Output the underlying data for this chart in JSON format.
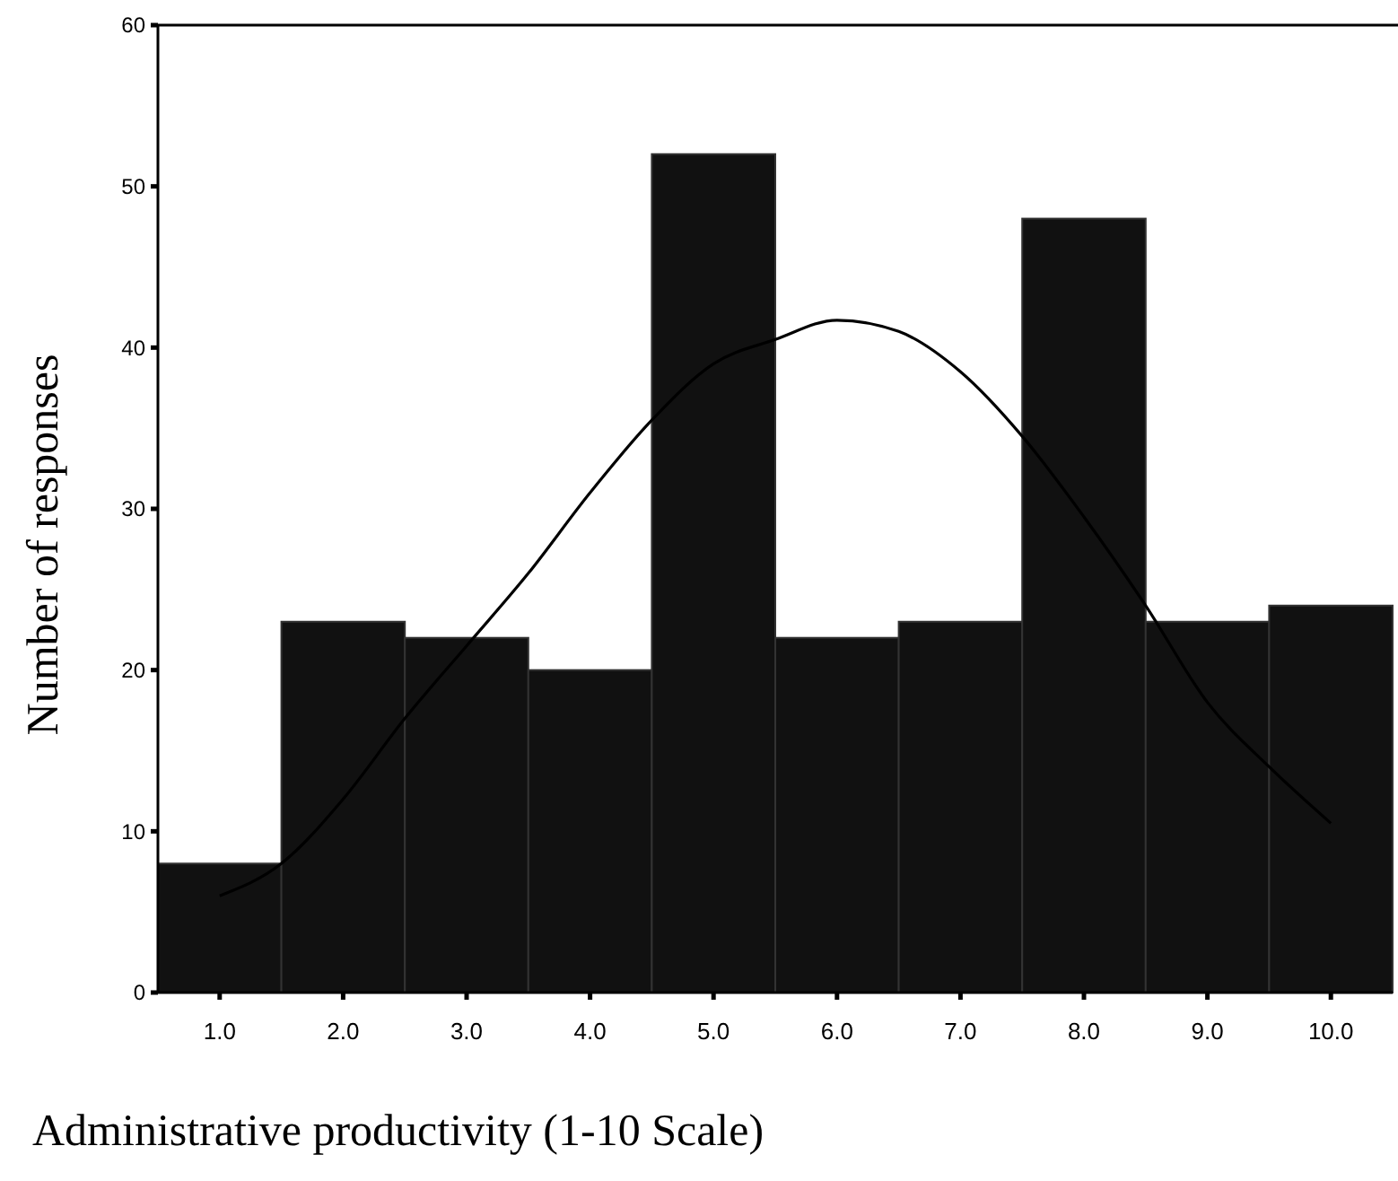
{
  "chart_data": {
    "type": "histogram",
    "xlabel": "Administrative productivity (1-10 Scale)",
    "ylabel": "Number of responses",
    "bins": [
      0.5,
      1.5,
      2.5,
      3.5,
      4.5,
      5.5,
      6.5,
      7.5,
      8.5,
      9.5,
      10.5
    ],
    "series": [
      {
        "color": "#111111",
        "values": [
          8,
          23,
          22,
          20,
          52,
          22,
          23,
          48,
          23,
          24
        ]
      },
      {
        "type": "line",
        "color": "#000000",
        "x": [
          1,
          1.5,
          2,
          2.5,
          3,
          3.5,
          4,
          4.5,
          5,
          5.5,
          6,
          6.5,
          7,
          7.5,
          8,
          8.5,
          9,
          9.5,
          10
        ],
        "values": [
          6,
          8,
          12,
          17,
          21.5,
          26,
          31,
          35.5,
          39,
          40.5,
          41.7,
          41,
          38.5,
          34.5,
          29.5,
          24,
          18,
          14,
          10.5
        ]
      }
    ],
    "xlim": [
      0.5,
      10.5
    ],
    "xticks": [
      {
        "value": 1,
        "label": "1.0"
      },
      {
        "value": 2,
        "label": "2.0"
      },
      {
        "value": 3,
        "label": "3.0"
      },
      {
        "value": 4,
        "label": "4.0"
      },
      {
        "value": 5,
        "label": "5.0"
      },
      {
        "value": 6,
        "label": "6.0"
      },
      {
        "value": 7,
        "label": "7.0"
      },
      {
        "value": 8,
        "label": "8.0"
      },
      {
        "value": 9,
        "label": "9.0"
      },
      {
        "value": 10,
        "label": "10.0"
      }
    ],
    "ylim": [
      0,
      60
    ],
    "yticks": [
      0,
      10,
      20,
      30,
      40,
      50,
      60
    ],
    "grid": false,
    "marker": "none",
    "line_style": "solid"
  }
}
